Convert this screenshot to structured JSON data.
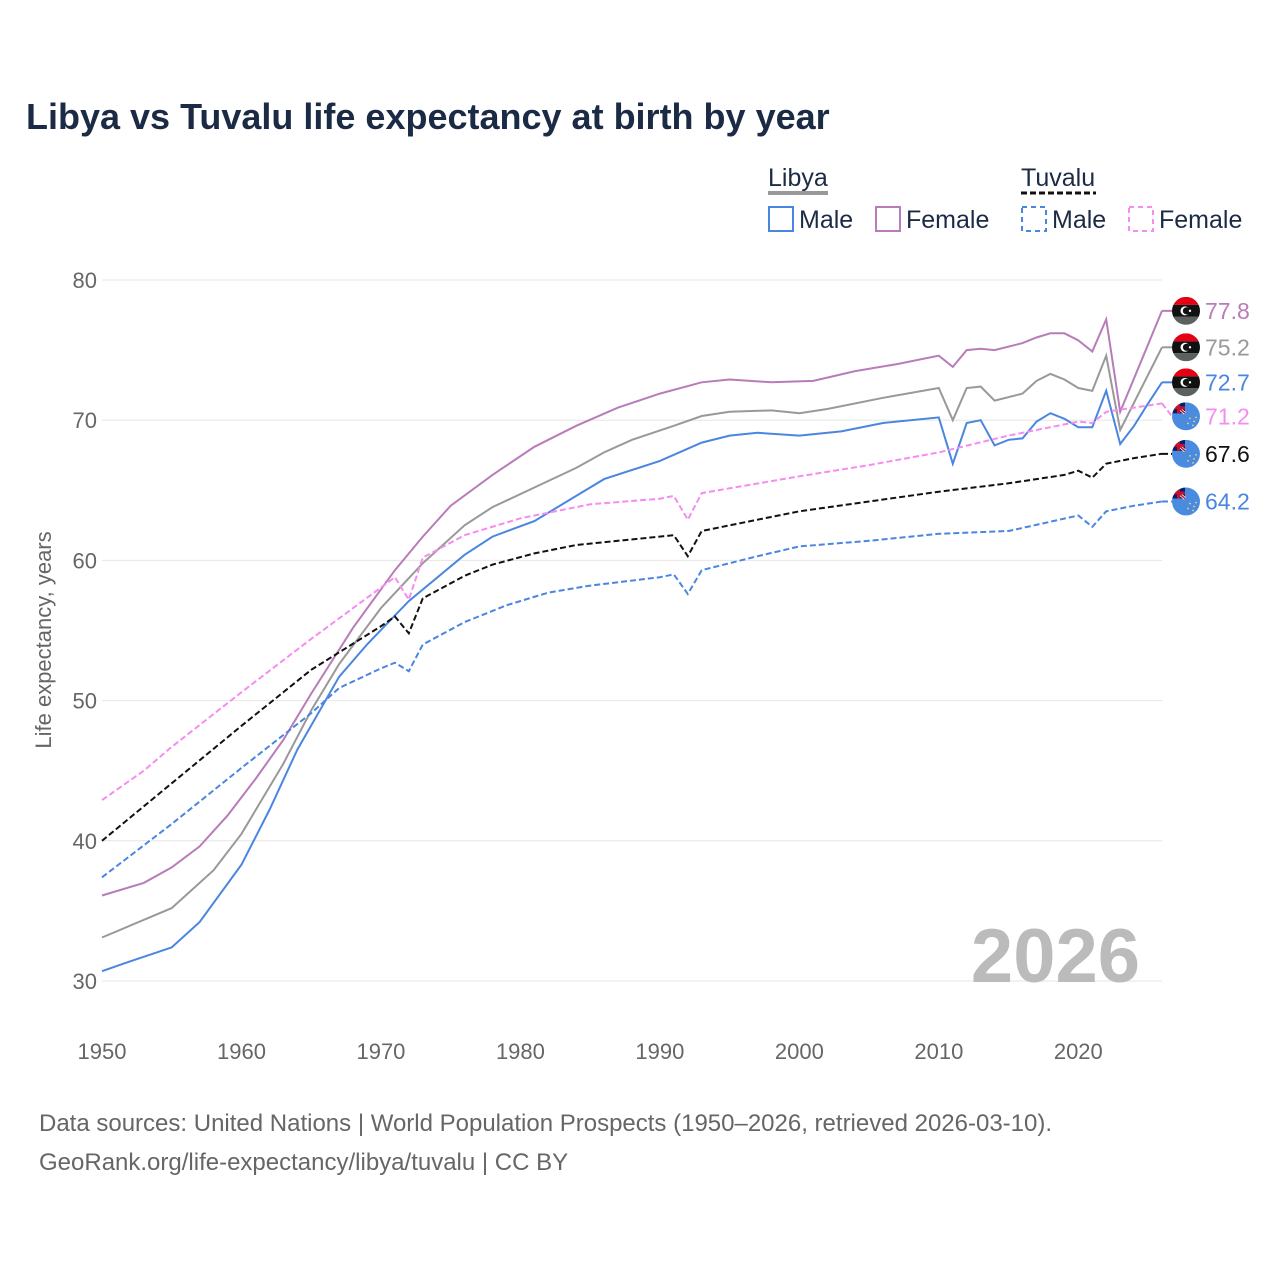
{
  "chart_data": {
    "type": "line",
    "title": "Libya vs Tuvalu life expectancy at birth by year",
    "xlabel": "",
    "ylabel": "Life expectancy, years",
    "xlim": [
      1950,
      2026
    ],
    "ylim": [
      30,
      80
    ],
    "xticks": [
      "1950",
      "1960",
      "1970",
      "1980",
      "1990",
      "2000",
      "2010",
      "2020"
    ],
    "yticks": [
      "30",
      "40",
      "50",
      "60",
      "70",
      "80"
    ],
    "grid": true,
    "year_watermark": "2026",
    "legend": {
      "groups": [
        {
          "name": "Libya",
          "items": [
            "Male",
            "Female"
          ]
        },
        {
          "name": "Tuvalu",
          "items": [
            "Male",
            "Female"
          ]
        }
      ],
      "placement": "top-right"
    },
    "series": [
      {
        "name": "Libya Female",
        "country": "Libya",
        "color": "#b87cb8",
        "dash": false,
        "end_label": "77.8",
        "points": [
          [
            1950,
            36.1
          ],
          [
            1953,
            37.0
          ],
          [
            1955,
            38.1
          ],
          [
            1957,
            39.6
          ],
          [
            1959,
            41.8
          ],
          [
            1961,
            44.4
          ],
          [
            1963,
            47.2
          ],
          [
            1965,
            50.5
          ],
          [
            1968,
            55.2
          ],
          [
            1971,
            59.3
          ],
          [
            1973,
            61.7
          ],
          [
            1975,
            63.9
          ],
          [
            1978,
            66.1
          ],
          [
            1981,
            68.1
          ],
          [
            1984,
            69.6
          ],
          [
            1987,
            70.9
          ],
          [
            1990,
            71.9
          ],
          [
            1993,
            72.7
          ],
          [
            1995,
            72.9
          ],
          [
            1998,
            72.7
          ],
          [
            2001,
            72.8
          ],
          [
            2004,
            73.5
          ],
          [
            2007,
            74.0
          ],
          [
            2010,
            74.6
          ],
          [
            2011,
            73.8
          ],
          [
            2012,
            75.0
          ],
          [
            2013,
            75.1
          ],
          [
            2014,
            75.0
          ],
          [
            2016,
            75.5
          ],
          [
            2017,
            75.9
          ],
          [
            2018,
            76.2
          ],
          [
            2019,
            76.2
          ],
          [
            2020,
            75.7
          ],
          [
            2021,
            74.9
          ],
          [
            2022,
            77.2
          ],
          [
            2023,
            70.6
          ],
          [
            2026,
            77.8
          ]
        ]
      },
      {
        "name": "Libya",
        "country": "Libya",
        "color": "#999999",
        "dash": false,
        "end_label": "75.2",
        "points": [
          [
            1950,
            33.1
          ],
          [
            1955,
            35.2
          ],
          [
            1958,
            37.9
          ],
          [
            1960,
            40.5
          ],
          [
            1963,
            45.5
          ],
          [
            1965,
            49.3
          ],
          [
            1967,
            52.6
          ],
          [
            1970,
            56.6
          ],
          [
            1973,
            59.8
          ],
          [
            1976,
            62.5
          ],
          [
            1978,
            63.8
          ],
          [
            1981,
            65.2
          ],
          [
            1984,
            66.6
          ],
          [
            1986,
            67.7
          ],
          [
            1988,
            68.6
          ],
          [
            1991,
            69.6
          ],
          [
            1993,
            70.3
          ],
          [
            1995,
            70.6
          ],
          [
            1998,
            70.7
          ],
          [
            2000,
            70.5
          ],
          [
            2002,
            70.8
          ],
          [
            2006,
            71.6
          ],
          [
            2010,
            72.3
          ],
          [
            2011,
            70.0
          ],
          [
            2012,
            72.3
          ],
          [
            2013,
            72.4
          ],
          [
            2014,
            71.4
          ],
          [
            2016,
            71.9
          ],
          [
            2017,
            72.8
          ],
          [
            2018,
            73.3
          ],
          [
            2019,
            72.9
          ],
          [
            2020,
            72.3
          ],
          [
            2021,
            72.1
          ],
          [
            2022,
            74.6
          ],
          [
            2023,
            69.3
          ],
          [
            2026,
            75.2
          ]
        ]
      },
      {
        "name": "Libya Male",
        "country": "Libya",
        "color": "#4a86e0",
        "dash": false,
        "end_label": "72.7",
        "points": [
          [
            1950,
            30.7
          ],
          [
            1952,
            31.4
          ],
          [
            1955,
            32.4
          ],
          [
            1957,
            34.2
          ],
          [
            1960,
            38.3
          ],
          [
            1962,
            42.2
          ],
          [
            1964,
            46.5
          ],
          [
            1967,
            51.7
          ],
          [
            1969,
            54.0
          ],
          [
            1972,
            57.1
          ],
          [
            1976,
            60.4
          ],
          [
            1978,
            61.7
          ],
          [
            1981,
            62.8
          ],
          [
            1984,
            64.6
          ],
          [
            1986,
            65.8
          ],
          [
            1990,
            67.1
          ],
          [
            1993,
            68.4
          ],
          [
            1995,
            68.9
          ],
          [
            1997,
            69.1
          ],
          [
            2000,
            68.9
          ],
          [
            2003,
            69.2
          ],
          [
            2006,
            69.8
          ],
          [
            2010,
            70.2
          ],
          [
            2011,
            66.9
          ],
          [
            2012,
            69.8
          ],
          [
            2013,
            70.0
          ],
          [
            2014,
            68.2
          ],
          [
            2015,
            68.6
          ],
          [
            2016,
            68.7
          ],
          [
            2017,
            69.9
          ],
          [
            2018,
            70.5
          ],
          [
            2019,
            70.1
          ],
          [
            2020,
            69.5
          ],
          [
            2021,
            69.5
          ],
          [
            2022,
            72.1
          ],
          [
            2023,
            68.3
          ],
          [
            2024,
            69.6
          ],
          [
            2025,
            71.2
          ],
          [
            2026,
            72.7
          ]
        ]
      },
      {
        "name": "Tuvalu Female",
        "country": "Tuvalu",
        "color": "#f68cf0",
        "dash": true,
        "end_label": "71.2",
        "points": [
          [
            1950,
            42.9
          ],
          [
            1953,
            45.0
          ],
          [
            1955,
            46.7
          ],
          [
            1960,
            50.6
          ],
          [
            1965,
            54.4
          ],
          [
            1968,
            56.6
          ],
          [
            1971,
            58.8
          ],
          [
            1972,
            57.2
          ],
          [
            1973,
            60.2
          ],
          [
            1976,
            61.8
          ],
          [
            1980,
            63.0
          ],
          [
            1985,
            64.0
          ],
          [
            1990,
            64.4
          ],
          [
            1991,
            64.6
          ],
          [
            1992,
            62.9
          ],
          [
            1993,
            64.8
          ],
          [
            2000,
            66.0
          ],
          [
            2005,
            66.8
          ],
          [
            2010,
            67.7
          ],
          [
            2015,
            68.9
          ],
          [
            2020,
            69.9
          ],
          [
            2021,
            69.8
          ],
          [
            2022,
            70.6
          ],
          [
            2026,
            71.2
          ]
        ]
      },
      {
        "name": "Tuvalu",
        "country": "Tuvalu",
        "color": "#111111",
        "dash": true,
        "end_label": "67.6",
        "points": [
          [
            1950,
            40.0
          ],
          [
            1955,
            44.1
          ],
          [
            1960,
            48.2
          ],
          [
            1965,
            52.2
          ],
          [
            1970,
            55.3
          ],
          [
            1971,
            56.0
          ],
          [
            1972,
            54.8
          ],
          [
            1973,
            57.3
          ],
          [
            1976,
            58.9
          ],
          [
            1978,
            59.7
          ],
          [
            1981,
            60.5
          ],
          [
            1984,
            61.1
          ],
          [
            1987,
            61.4
          ],
          [
            1991,
            61.8
          ],
          [
            1992,
            60.3
          ],
          [
            1993,
            62.1
          ],
          [
            1997,
            62.9
          ],
          [
            2000,
            63.5
          ],
          [
            2005,
            64.2
          ],
          [
            2010,
            64.9
          ],
          [
            2015,
            65.5
          ],
          [
            2019,
            66.1
          ],
          [
            2020,
            66.4
          ],
          [
            2021,
            65.9
          ],
          [
            2022,
            66.9
          ],
          [
            2024,
            67.3
          ],
          [
            2026,
            67.6
          ]
        ]
      },
      {
        "name": "Tuvalu Male",
        "country": "Tuvalu",
        "color": "#4a86e0",
        "dash": true,
        "end_label": "64.2",
        "points": [
          [
            1950,
            37.4
          ],
          [
            1955,
            41.2
          ],
          [
            1960,
            45.2
          ],
          [
            1965,
            49.1
          ],
          [
            1967,
            50.9
          ],
          [
            1970,
            52.3
          ],
          [
            1971,
            52.7
          ],
          [
            1972,
            52.1
          ],
          [
            1973,
            54.0
          ],
          [
            1976,
            55.6
          ],
          [
            1979,
            56.8
          ],
          [
            1982,
            57.7
          ],
          [
            1985,
            58.2
          ],
          [
            1990,
            58.8
          ],
          [
            1991,
            59.0
          ],
          [
            1992,
            57.6
          ],
          [
            1993,
            59.3
          ],
          [
            1997,
            60.3
          ],
          [
            2000,
            61.0
          ],
          [
            2005,
            61.4
          ],
          [
            2010,
            61.9
          ],
          [
            2015,
            62.1
          ],
          [
            2020,
            63.2
          ],
          [
            2021,
            62.4
          ],
          [
            2022,
            63.5
          ],
          [
            2024,
            63.9
          ],
          [
            2026,
            64.2
          ]
        ]
      }
    ]
  },
  "footer": {
    "line1": "Data sources: United Nations | World Population Prospects (1950–2026, retrieved 2026-03-10).",
    "line2": "GeoRank.org/life-expectancy/libya/tuvalu | CC BY"
  }
}
